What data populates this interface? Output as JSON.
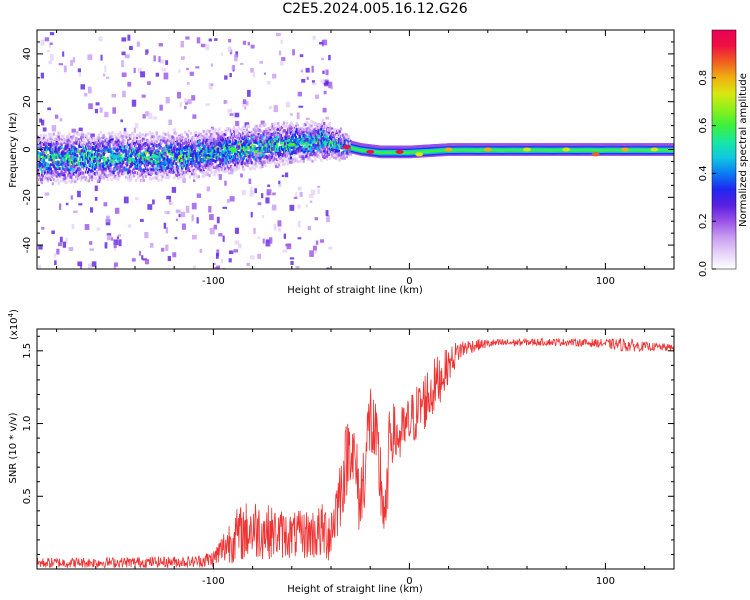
{
  "title": "C2E5.2024.005.16.12.G26",
  "colors": {
    "snr_line": "#ee3333",
    "axis": "#000000",
    "colormap": [
      "#ffffff",
      "#e6d2f7",
      "#c79cf0",
      "#9a52e8",
      "#5a20e0",
      "#1e28f0",
      "#0b7cf3",
      "#10c8e0",
      "#18e8a0",
      "#3cf03c",
      "#8cf01c",
      "#d8e810",
      "#f0b010",
      "#f06020",
      "#f01040",
      "#e8005a"
    ]
  },
  "chart_data": [
    {
      "type": "heatmap",
      "name": "spectrogram",
      "xlabel": "Height of straight line (km)",
      "ylabel": "Frequency (Hz)",
      "xlim": [
        -190,
        135
      ],
      "ylim": [
        -50,
        50
      ],
      "xticks": [
        -100,
        0,
        100
      ],
      "xtick_labels": [
        "-100",
        "0",
        "100"
      ],
      "yticks": [
        -40,
        -20,
        0,
        20,
        40
      ],
      "ytick_labels": [
        "-40",
        "-20",
        "0",
        "20",
        "40"
      ],
      "colorbar": {
        "label": "Normalized spectral amplitude",
        "range": [
          0,
          1
        ],
        "ticks": [
          0.0,
          0.2,
          0.4,
          0.6,
          0.8
        ],
        "tick_labels": [
          "0.0",
          "0.2",
          "0.4",
          "0.6",
          "0.8"
        ]
      },
      "centerline": {
        "x": [
          -190,
          -160,
          -130,
          -110,
          -90,
          -70,
          -55,
          -45,
          -35,
          -25,
          -15,
          0,
          20,
          60,
          100,
          135
        ],
        "y": [
          -4,
          -3,
          -3,
          -2,
          0,
          2,
          3,
          4,
          2,
          0,
          -1,
          -1,
          0,
          0,
          0,
          0
        ]
      },
      "bandwidth": {
        "x": [
          -190,
          -100,
          -60,
          -45,
          -35,
          -30,
          0,
          135
        ],
        "y": [
          8,
          7,
          6,
          6,
          4,
          2,
          2,
          2
        ]
      },
      "peaks": [
        {
          "x": -32,
          "y": 1,
          "amp": 0.95
        },
        {
          "x": -20,
          "y": -1,
          "amp": 0.9
        },
        {
          "x": -5,
          "y": -1,
          "amp": 0.9
        },
        {
          "x": 5,
          "y": -2,
          "amp": 0.7
        },
        {
          "x": 20,
          "y": 0,
          "amp": 0.8
        },
        {
          "x": 40,
          "y": 0,
          "amp": 0.8
        },
        {
          "x": 60,
          "y": 0,
          "amp": 0.75
        },
        {
          "x": 80,
          "y": 0,
          "amp": 0.75
        },
        {
          "x": 95,
          "y": -2,
          "amp": 0.85
        },
        {
          "x": 110,
          "y": 0,
          "amp": 0.8
        },
        {
          "x": 125,
          "y": 0,
          "amp": 0.75
        },
        {
          "x": -90,
          "y": 0,
          "amp": 0.6
        },
        {
          "x": -60,
          "y": 2,
          "amp": 0.6
        },
        {
          "x": -130,
          "y": -3,
          "amp": 0.5
        },
        {
          "x": -150,
          "y": -3,
          "amp": 0.45
        }
      ]
    },
    {
      "type": "line",
      "name": "snr",
      "xlabel": "Height of straight line (km)",
      "ylabel": "SNR (10 * v/v)",
      "y_multiplier_label": "(x10",
      "y_multiplier_exp": "4",
      "xlim": [
        -190,
        135
      ],
      "ylim": [
        0,
        16500
      ],
      "xticks": [
        -100,
        0,
        100
      ],
      "xtick_labels": [
        "-100",
        "0",
        "100"
      ],
      "yticks": [
        5000,
        10000,
        15000
      ],
      "ytick_labels": [
        "0.5",
        "1.0",
        "1.5"
      ],
      "envelope": {
        "x": [
          -190,
          -150,
          -110,
          -100,
          -90,
          -80,
          -70,
          -60,
          -50,
          -40,
          -35,
          -30,
          -25,
          -20,
          -15,
          -12,
          -10,
          -5,
          0,
          5,
          10,
          15,
          20,
          25,
          30,
          40,
          60,
          80,
          100,
          110,
          120,
          135
        ],
        "mean": [
          400,
          450,
          500,
          700,
          2200,
          2800,
          2500,
          2300,
          2400,
          2600,
          5500,
          9000,
          4500,
          10500,
          6500,
          3000,
          9500,
          9000,
          10000,
          11000,
          12000,
          13000,
          14000,
          15000,
          15300,
          15500,
          15600,
          15600,
          15500,
          15400,
          15300,
          15200
        ],
        "noise": [
          400,
          400,
          450,
          600,
          1800,
          2200,
          1800,
          1600,
          1800,
          2200,
          2600,
          2800,
          2800,
          3000,
          3200,
          2500,
          2200,
          2000,
          2000,
          2000,
          2200,
          1800,
          1200,
          800,
          500,
          300,
          250,
          250,
          300,
          500,
          300,
          250
        ]
      }
    }
  ]
}
